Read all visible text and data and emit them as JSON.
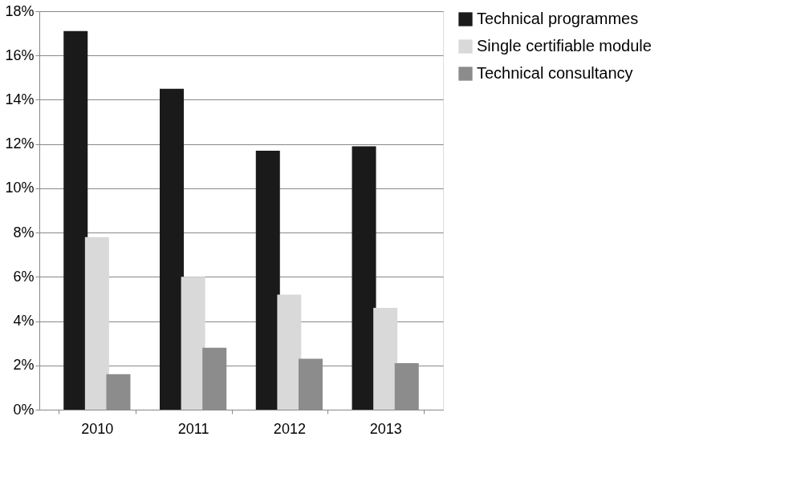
{
  "chart_data": {
    "type": "bar",
    "categories": [
      "2010",
      "2011",
      "2012",
      "2013"
    ],
    "series": [
      {
        "name": "Technical programmes",
        "color": "#1a1a1a",
        "values": [
          17.1,
          14.5,
          11.7,
          11.9
        ]
      },
      {
        "name": "Single certifiable module",
        "color": "#d9d9d9",
        "values": [
          7.8,
          6.0,
          5.2,
          4.6
        ]
      },
      {
        "name": "Technical consultancy",
        "color": "#8c8c8c",
        "values": [
          1.6,
          2.8,
          2.3,
          2.1
        ]
      }
    ],
    "ylim": [
      0,
      18
    ],
    "yticks": [
      {
        "value": 0,
        "label": "0%"
      },
      {
        "value": 2,
        "label": "2%"
      },
      {
        "value": 4,
        "label": "4%"
      },
      {
        "value": 6,
        "label": "6%"
      },
      {
        "value": 8,
        "label": "8%"
      },
      {
        "value": 10,
        "label": "10%"
      },
      {
        "value": 12,
        "label": "12%"
      },
      {
        "value": 14,
        "label": "14%"
      },
      {
        "value": 16,
        "label": "16%"
      },
      {
        "value": 18,
        "label": "18%"
      }
    ],
    "grid": "y",
    "legend": "right"
  }
}
